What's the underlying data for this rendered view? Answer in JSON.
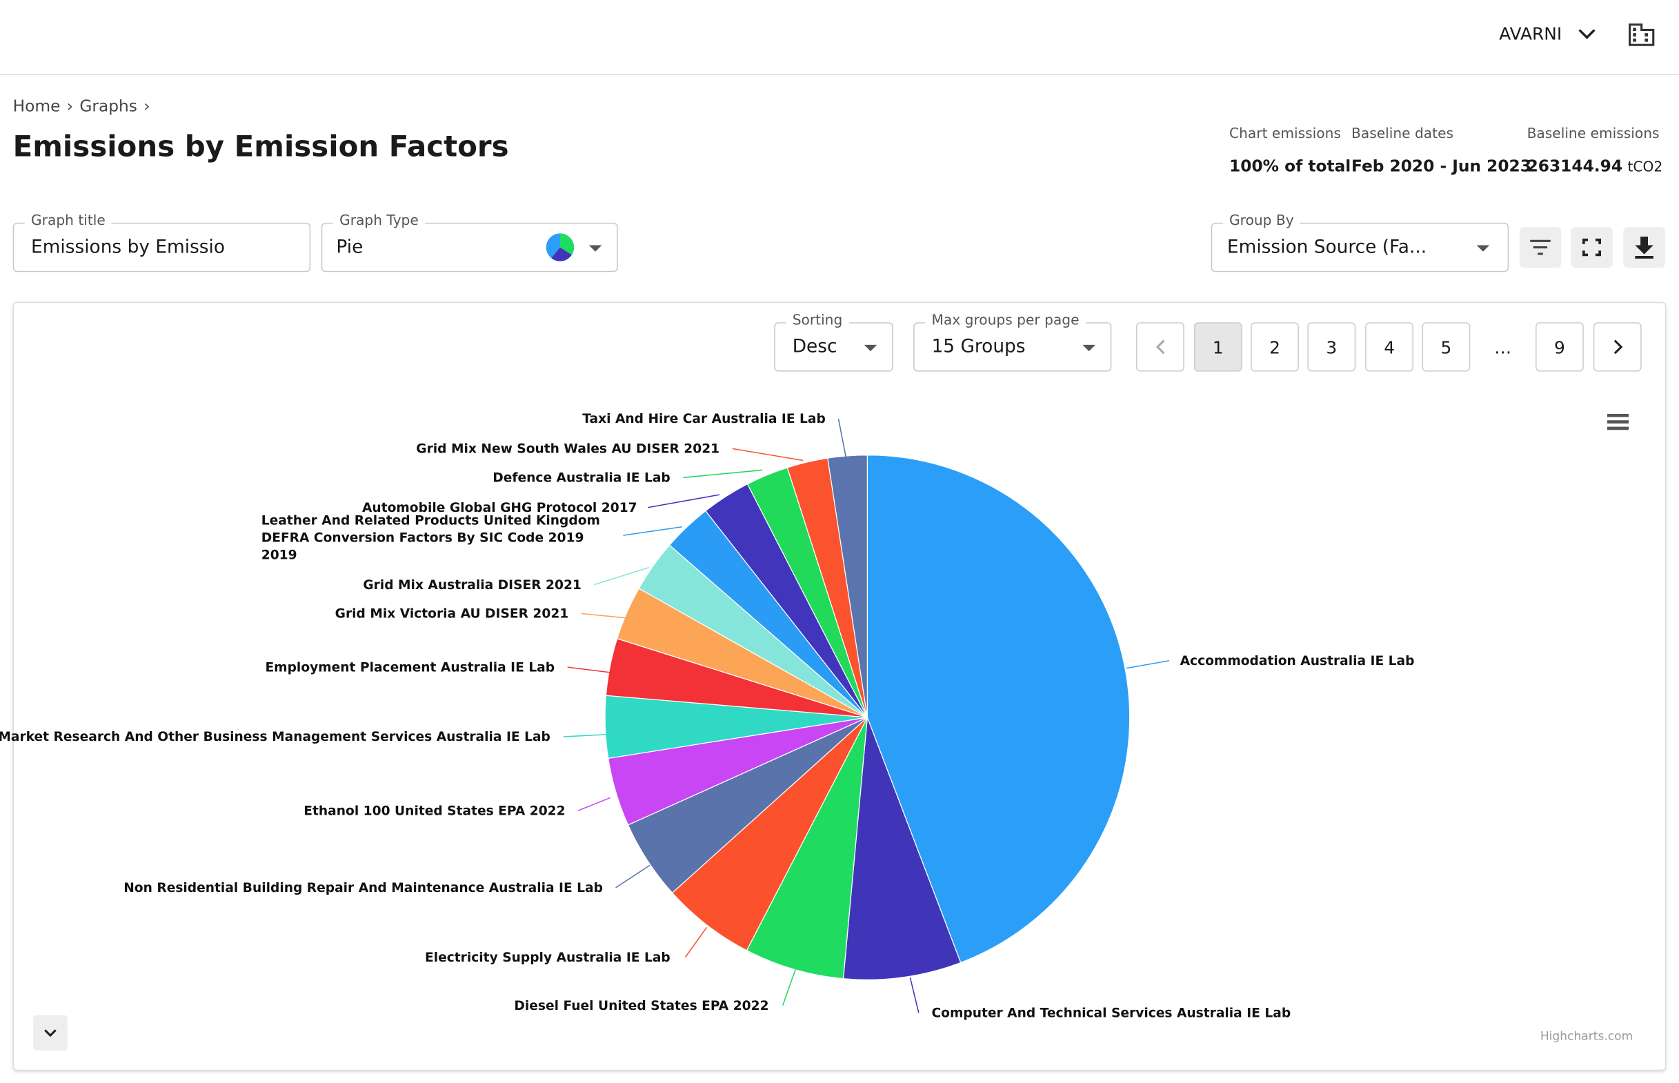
{
  "header": {
    "account": "AVARNI"
  },
  "breadcrumbs": [
    "Home",
    "Graphs"
  ],
  "page_title": "Emissions by Emission Factors",
  "stats": [
    {
      "label": "Chart emissions",
      "value": "100% of total"
    },
    {
      "label": "Baseline dates",
      "value": "Feb 2020 - Jun 2023"
    },
    {
      "label": "Baseline emissions",
      "value": "263144.94",
      "unit": "tCO2"
    }
  ],
  "fields": {
    "graph_title": {
      "label": "Graph title",
      "value": "Emissions by Emissio"
    },
    "graph_type": {
      "label": "Graph Type",
      "value": "Pie"
    },
    "group_by": {
      "label": "Group By",
      "value": "Emission Source (Fa..."
    },
    "sorting": {
      "label": "Sorting",
      "value": "Desc"
    },
    "max_groups": {
      "label": "Max groups per page",
      "value": "15 Groups"
    }
  },
  "pagination": {
    "pages": [
      "1",
      "2",
      "3",
      "4",
      "5",
      "…",
      "9"
    ],
    "active": "1"
  },
  "credits": "Highcharts.com",
  "chart_data": {
    "type": "pie",
    "categories": [
      "Accommodation Australia IE Lab",
      "Computer And Technical Services Australia IE Lab",
      "Diesel Fuel United States EPA 2022",
      "Electricity Supply Australia IE Lab",
      "Non Residential Building Repair And Maintenance Australia IE Lab",
      "Ethanol 100 United States EPA 2022",
      "Market Research And Other Business Management Services Australia IE Lab",
      "Employment Placement Australia IE Lab",
      "Grid Mix Victoria AU DISER 2021",
      "Grid Mix Australia DISER 2021",
      "Leather And Related Products United Kingdom DEFRA Conversion Factors By SIC Code 2019 2019",
      "Automobile Global GHG Protocol 2017",
      "Defence Australia IE Lab",
      "Grid Mix New South Wales AU DISER 2021",
      "Taxi And Hire Car Australia IE Lab"
    ],
    "values": [
      43.9,
      7.2,
      6.1,
      5.7,
      4.9,
      4.2,
      3.8,
      3.5,
      3.3,
      3.2,
      3.0,
      3.0,
      2.6,
      2.5,
      2.4
    ],
    "colors": [
      "#2b9ef8",
      "#4035b8",
      "#1fdc60",
      "#fb512c",
      "#5a74ab",
      "#c946f5",
      "#2fd9c3",
      "#f23237",
      "#fda556",
      "#86e5da",
      "#2a9cf5",
      "#4135bb",
      "#21da5a",
      "#fb532e",
      "#5b74ad"
    ]
  }
}
